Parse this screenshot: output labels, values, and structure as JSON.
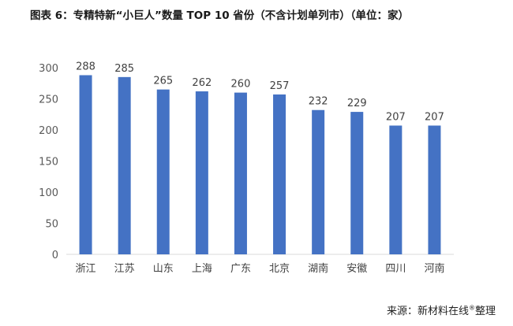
{
  "chart_data": {
    "type": "bar",
    "title": "图表 6：专精特新“小巨人”数量 TOP 10 省份（不含计划单列市）（单位：家）",
    "categories": [
      "浙江",
      "江苏",
      "山东",
      "上海",
      "广东",
      "北京",
      "湖南",
      "安徽",
      "四川",
      "河南"
    ],
    "values": [
      288,
      285,
      265,
      262,
      260,
      257,
      232,
      229,
      207,
      207
    ],
    "xlabel": "",
    "ylabel": "",
    "ylim": [
      0,
      300
    ],
    "yticks": [
      0,
      50,
      100,
      150,
      200,
      250,
      300
    ],
    "grid": false,
    "legend": "none",
    "bar_color": "#4472C4"
  },
  "source": {
    "prefix": "来源：新材料在线",
    "mark": "®",
    "suffix": "整理"
  }
}
